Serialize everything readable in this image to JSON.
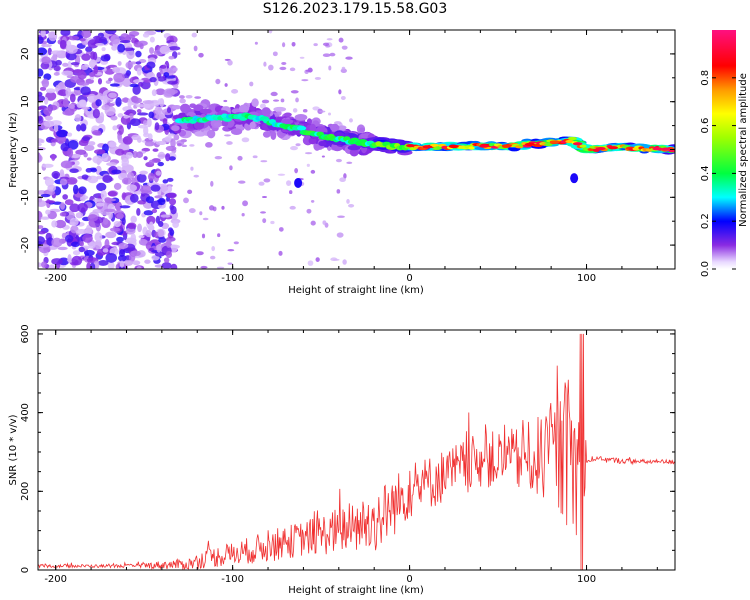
{
  "title": "S126.2023.179.15.58.G03",
  "chart_data": [
    {
      "type": "heatmap",
      "xlabel": "Height of straight line (km)",
      "ylabel": "Frequency (Hz)",
      "xlim": [
        -210,
        150
      ],
      "ylim": [
        -25,
        25
      ],
      "xticks": [
        -200,
        -100,
        0,
        100
      ],
      "yticks": [
        -20,
        -10,
        0,
        10,
        20
      ],
      "colorbar": {
        "label": "Normalized spectral amplitude",
        "ticks": [
          "0.0",
          "0.2",
          "0.4",
          "0.6",
          "0.8"
        ],
        "range": [
          0,
          1
        ]
      },
      "regions": [
        {
          "x_range": [
            -210,
            -133
          ],
          "description": "broadband noise",
          "amplitude": 0.1
        },
        {
          "x_range": [
            -133,
            -70
          ],
          "freq_center": 6,
          "freq_spread": 4,
          "amplitude": 0.25
        },
        {
          "x_range": [
            -70,
            -20
          ],
          "freq_center": 3,
          "freq_spread": 3,
          "amplitude": 0.3
        },
        {
          "x_range": [
            -20,
            0
          ],
          "freq_center": 1,
          "freq_spread": 1.5,
          "amplitude": 0.45
        },
        {
          "x_range": [
            0,
            92
          ],
          "freq_center": 0.8,
          "freq_spread": 0.8,
          "amplitude": 0.85
        },
        {
          "x_range": [
            92,
            150
          ],
          "freq_center": 0.3,
          "freq_spread": 0.6,
          "amplitude": 0.9
        }
      ],
      "ridge": {
        "x": [
          -130,
          -110,
          -90,
          -70,
          -50,
          -30,
          -10,
          0,
          20,
          40,
          60,
          80,
          92,
          100,
          120,
          150
        ],
        "freq": [
          6,
          6.5,
          7,
          5,
          3,
          1.5,
          0.8,
          0.5,
          0.6,
          0.7,
          0.8,
          1.5,
          2,
          0,
          0.5,
          0
        ]
      }
    },
    {
      "type": "line",
      "xlabel": "Height of straight line (km)",
      "ylabel": "SNR (10 * v/v)",
      "xlim": [
        -210,
        150
      ],
      "ylim": [
        0,
        610
      ],
      "xticks": [
        -200,
        -100,
        0,
        100
      ],
      "yticks": [
        0,
        200,
        400,
        600
      ],
      "color": "#f03030",
      "envelope": {
        "x": [
          -210,
          -160,
          -125,
          -115,
          -100,
          -80,
          -60,
          -40,
          -20,
          -10,
          0,
          20,
          40,
          60,
          80,
          90,
          98,
          100,
          110,
          130,
          150
        ],
        "mean": [
          10,
          10,
          15,
          30,
          40,
          60,
          80,
          100,
          120,
          160,
          200,
          240,
          280,
          280,
          290,
          300,
          200,
          280,
          280,
          275,
          275
        ],
        "noise": [
          4,
          4,
          15,
          25,
          30,
          40,
          45,
          60,
          80,
          80,
          70,
          70,
          70,
          80,
          120,
          200,
          250,
          10,
          8,
          6,
          6
        ]
      }
    }
  ]
}
